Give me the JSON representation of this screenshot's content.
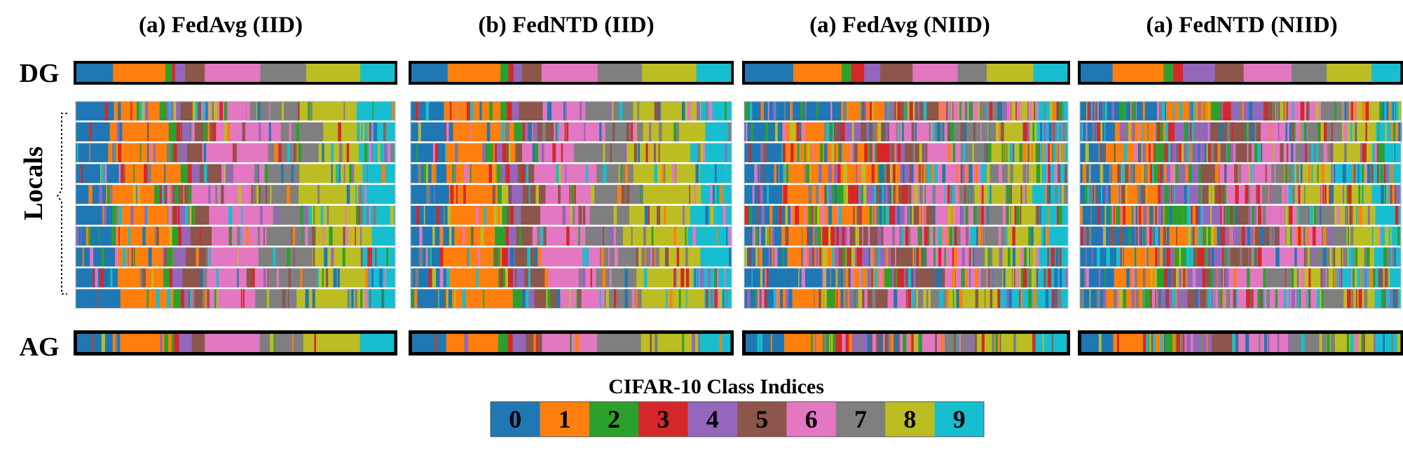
{
  "chart_data": {
    "type": "heatmap",
    "row_labels": {
      "top": "DG",
      "middle": "Locals",
      "bottom": "AG"
    },
    "panels": [
      {
        "title": "(a) FedAvg (IID)",
        "dg": [
          [
            0,
            0.112
          ],
          [
            1,
            0.16
          ],
          [
            2,
            0.02
          ],
          [
            3,
            0.01
          ],
          [
            4,
            0.03
          ],
          [
            5,
            0.06
          ],
          [
            6,
            0.17
          ],
          [
            7,
            0.14
          ],
          [
            8,
            0.165
          ],
          [
            9,
            0.105
          ]
        ],
        "ag": [
          [
            0,
            0.11
          ],
          [
            1,
            0.16
          ],
          [
            2,
            0.03
          ],
          [
            3,
            0.015
          ],
          [
            4,
            0.04
          ],
          [
            5,
            0.04
          ],
          [
            6,
            0.17
          ],
          [
            7,
            0.135
          ],
          [
            8,
            0.175
          ],
          [
            9,
            0.105
          ]
        ]
      },
      {
        "title": "(b) FedNTD (IID)",
        "dg": [
          [
            0,
            0.11
          ],
          [
            1,
            0.16
          ],
          [
            2,
            0.025
          ],
          [
            3,
            0.015
          ],
          [
            4,
            0.025
          ],
          [
            5,
            0.06
          ],
          [
            6,
            0.17
          ],
          [
            7,
            0.135
          ],
          [
            8,
            0.165
          ],
          [
            9,
            0.105
          ]
        ],
        "ag": [
          [
            0,
            0.105
          ],
          [
            1,
            0.16
          ],
          [
            2,
            0.03
          ],
          [
            3,
            0.015
          ],
          [
            4,
            0.04
          ],
          [
            5,
            0.05
          ],
          [
            6,
            0.17
          ],
          [
            7,
            0.135
          ],
          [
            8,
            0.175
          ],
          [
            9,
            0.1
          ]
        ]
      },
      {
        "title": "(a) FedAvg (NIID)",
        "dg": [
          [
            0,
            0.15
          ],
          [
            1,
            0.15
          ],
          [
            2,
            0.03
          ],
          [
            3,
            0.04
          ],
          [
            4,
            0.05
          ],
          [
            5,
            0.1
          ],
          [
            6,
            0.14
          ],
          [
            7,
            0.09
          ],
          [
            8,
            0.145
          ],
          [
            9,
            0.105
          ]
        ],
        "ag": [
          [
            0,
            0.12
          ],
          [
            1,
            0.12
          ],
          [
            2,
            0.04
          ],
          [
            3,
            0.05
          ],
          [
            4,
            0.05
          ],
          [
            5,
            0.1
          ],
          [
            6,
            0.14
          ],
          [
            7,
            0.1
          ],
          [
            8,
            0.18
          ],
          [
            9,
            0.1
          ]
        ]
      },
      {
        "title": "(a) FedNTD (NIID)",
        "dg": [
          [
            0,
            0.1
          ],
          [
            1,
            0.16
          ],
          [
            2,
            0.03
          ],
          [
            3,
            0.03
          ],
          [
            4,
            0.1
          ],
          [
            5,
            0.09
          ],
          [
            6,
            0.15
          ],
          [
            7,
            0.11
          ],
          [
            8,
            0.14
          ],
          [
            9,
            0.09
          ]
        ],
        "ag": [
          [
            0,
            0.1
          ],
          [
            1,
            0.16
          ],
          [
            2,
            0.04
          ],
          [
            3,
            0.03
          ],
          [
            4,
            0.08
          ],
          [
            5,
            0.08
          ],
          [
            6,
            0.16
          ],
          [
            7,
            0.12
          ],
          [
            8,
            0.15
          ],
          [
            9,
            0.08
          ]
        ]
      }
    ],
    "locals_rows": 10,
    "legend": {
      "title": "CIFAR-10 Class Indices",
      "classes": [
        "0",
        "1",
        "2",
        "3",
        "4",
        "5",
        "6",
        "7",
        "8",
        "9"
      ],
      "colors": [
        "#1f77b4",
        "#ff7f0e",
        "#2ca02c",
        "#d62728",
        "#9467bd",
        "#8c564b",
        "#e377c2",
        "#7f7f7f",
        "#bcbd22",
        "#17becf"
      ]
    }
  }
}
